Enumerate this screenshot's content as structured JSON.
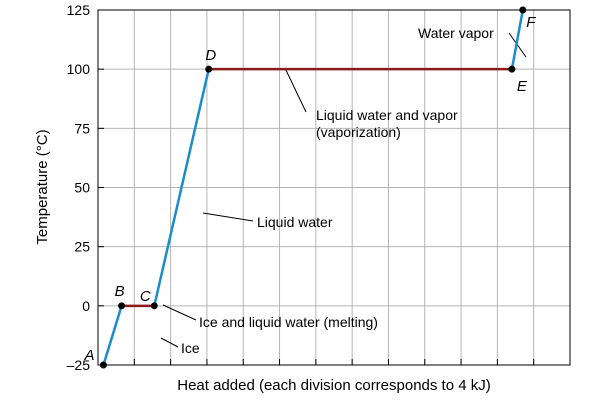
{
  "chart_data": {
    "type": "line",
    "title": "",
    "xlabel": "Heat added (each division corresponds to 4 kJ)",
    "ylabel": "Temperature (°C)",
    "yticks": [
      "125",
      "100",
      "75",
      "50",
      "25",
      "0",
      "–25"
    ],
    "ylim": [
      -25,
      125
    ],
    "xlim": [
      0,
      26
    ],
    "grid": true,
    "points": [
      {
        "label": "A",
        "x": 0.3,
        "y": -25
      },
      {
        "label": "B",
        "x": 1.3,
        "y": 0
      },
      {
        "label": "C",
        "x": 3.1,
        "y": 0
      },
      {
        "label": "D",
        "x": 6.1,
        "y": 100
      },
      {
        "label": "E",
        "x": 22.8,
        "y": 100
      },
      {
        "label": "F",
        "x": 23.4,
        "y": 125
      }
    ],
    "segments": [
      {
        "from": "A",
        "to": "B",
        "phase": "heating",
        "color": "#1b8ccc",
        "annotation": "Ice"
      },
      {
        "from": "B",
        "to": "C",
        "phase": "transition",
        "color": "#8b1a1a",
        "annotation": "Ice and liquid water (melting)"
      },
      {
        "from": "C",
        "to": "D",
        "phase": "heating",
        "color": "#1b8ccc",
        "annotation": "Liquid water"
      },
      {
        "from": "D",
        "to": "E",
        "phase": "transition",
        "color": "#8b1a1a",
        "annotation": "Liquid water and vapor (vaporization)"
      },
      {
        "from": "E",
        "to": "F",
        "phase": "heating",
        "color": "#1b8ccc",
        "annotation": "Water vapor"
      }
    ],
    "annotation_lines": {
      "liquid_vapor": [
        "Liquid water and vapor",
        "(vaporization)"
      ]
    }
  }
}
